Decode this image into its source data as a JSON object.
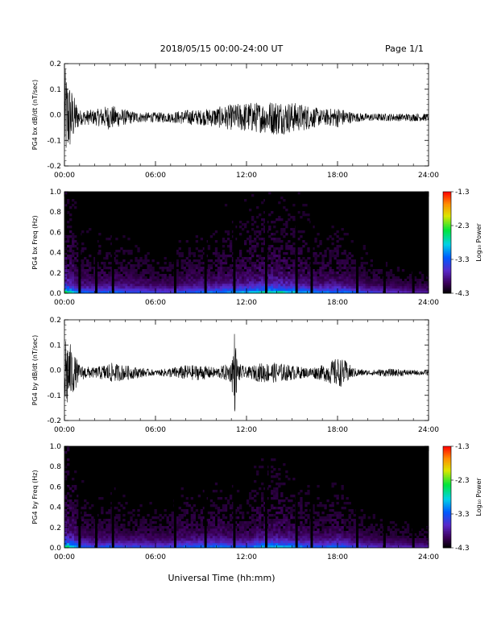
{
  "header": {
    "date_range": "2018/05/15   00:00-24:00 UT",
    "page": "Page 1/1"
  },
  "footer": {
    "xlabel": "Universal Time (hh:mm)"
  },
  "colorbar": {
    "title": "Log₁₀ Power",
    "range": [
      -4.3,
      -1.3
    ],
    "ticks": [
      "-1.3",
      "-2.3",
      "-3.3",
      "-4.3"
    ]
  },
  "colors": {
    "trace": "#000000",
    "spectrogram_background": "#000000"
  },
  "chart_data": [
    {
      "type": "line",
      "ylabel": "PG4 bx dB/dt (nT/sec)",
      "ylim": [
        -0.2,
        0.2
      ],
      "yticks": [
        "0.2",
        "0.1",
        "0.0",
        "-0.1",
        "-0.2"
      ],
      "xticks": [
        "00:00",
        "06:00",
        "12:00",
        "18:00",
        "24:00"
      ],
      "xlim_hours": [
        0,
        24
      ],
      "envelope": {
        "hours": [
          0,
          0.3,
          0.6,
          1,
          2,
          3,
          4,
          5,
          6,
          7,
          8,
          9,
          10,
          11,
          12,
          13,
          14,
          15,
          16,
          17,
          18,
          19,
          20,
          21,
          22,
          23,
          24
        ],
        "amplitude": [
          0.2,
          0.15,
          0.09,
          0.03,
          0.03,
          0.05,
          0.03,
          0.02,
          0.02,
          0.02,
          0.03,
          0.03,
          0.04,
          0.05,
          0.06,
          0.06,
          0.07,
          0.06,
          0.05,
          0.03,
          0.04,
          0.02,
          0.015,
          0.015,
          0.015,
          0.015,
          0.015
        ]
      }
    },
    {
      "type": "heatmap",
      "ylabel": "PG4 bx Freq (Hz)",
      "ylim": [
        0,
        1
      ],
      "yticks": [
        "1.0",
        "0.8",
        "0.6",
        "0.4",
        "0.2",
        "0.0"
      ],
      "xticks": [
        "00:00",
        "06:00",
        "12:00",
        "18:00",
        "24:00"
      ],
      "xlim_hours": [
        0,
        24
      ],
      "zlim": [
        -4.3,
        -1.3
      ],
      "activity": {
        "hours": [
          0,
          0.5,
          1,
          2,
          3,
          4,
          5,
          6,
          7,
          8,
          9,
          10,
          11,
          12,
          13,
          14,
          15,
          16,
          17,
          18,
          19,
          20,
          21,
          22,
          23,
          24
        ],
        "level": [
          1.0,
          0.9,
          0.6,
          0.55,
          0.6,
          0.55,
          0.5,
          0.45,
          0.45,
          0.55,
          0.6,
          0.65,
          0.7,
          0.75,
          0.85,
          0.9,
          0.8,
          0.7,
          0.6,
          0.65,
          0.55,
          0.45,
          0.4,
          0.35,
          0.3,
          0.3
        ]
      },
      "data_gaps_hours": [
        1.0,
        2.1,
        3.2,
        7.3,
        9.3,
        11.2,
        13.3,
        15.3,
        16.3,
        19.3,
        21.1,
        23.0
      ]
    },
    {
      "type": "line",
      "ylabel": "PG4 by dB/dt (nT/sec)",
      "ylim": [
        -0.2,
        0.2
      ],
      "yticks": [
        "0.2",
        "0.1",
        "0.0",
        "-0.1",
        "-0.2"
      ],
      "xticks": [
        "00:00",
        "06:00",
        "12:00",
        "18:00",
        "24:00"
      ],
      "xlim_hours": [
        0,
        24
      ],
      "envelope": {
        "hours": [
          0,
          0.3,
          0.6,
          1,
          2,
          3,
          4,
          5,
          6,
          7,
          8,
          9,
          10,
          11,
          11.2,
          11.4,
          12,
          13,
          14,
          15,
          16,
          17,
          18,
          18.5,
          19,
          20,
          21,
          22,
          23,
          24
        ],
        "amplitude": [
          0.18,
          0.13,
          0.08,
          0.03,
          0.02,
          0.04,
          0.03,
          0.02,
          0.01,
          0.02,
          0.03,
          0.03,
          0.02,
          0.04,
          0.18,
          0.04,
          0.02,
          0.04,
          0.04,
          0.03,
          0.02,
          0.03,
          0.06,
          0.05,
          0.02,
          0.01,
          0.015,
          0.015,
          0.01,
          0.01
        ]
      }
    },
    {
      "type": "heatmap",
      "ylabel": "PG4 by Freq (Hz)",
      "ylim": [
        0,
        1
      ],
      "yticks": [
        "1.0",
        "0.8",
        "0.6",
        "0.4",
        "0.2",
        "0.0"
      ],
      "xticks": [
        "00:00",
        "06:00",
        "12:00",
        "18:00",
        "24:00"
      ],
      "xlim_hours": [
        0,
        24
      ],
      "zlim": [
        -4.3,
        -1.3
      ],
      "activity": {
        "hours": [
          0,
          0.5,
          1,
          2,
          3,
          4,
          5,
          6,
          7,
          8,
          9,
          10,
          11,
          12,
          13,
          14,
          15,
          16,
          17,
          18,
          19,
          20,
          21,
          22,
          23,
          24
        ],
        "level": [
          1.0,
          0.9,
          0.6,
          0.5,
          0.55,
          0.5,
          0.5,
          0.45,
          0.5,
          0.6,
          0.6,
          0.65,
          0.6,
          0.55,
          0.75,
          0.8,
          0.7,
          0.6,
          0.55,
          0.65,
          0.5,
          0.4,
          0.35,
          0.35,
          0.3,
          0.3
        ]
      },
      "data_gaps_hours": [
        1.0,
        2.1,
        3.2,
        7.3,
        9.3,
        11.2,
        13.3,
        15.3,
        16.3,
        19.3,
        21.1,
        23.0
      ]
    }
  ]
}
